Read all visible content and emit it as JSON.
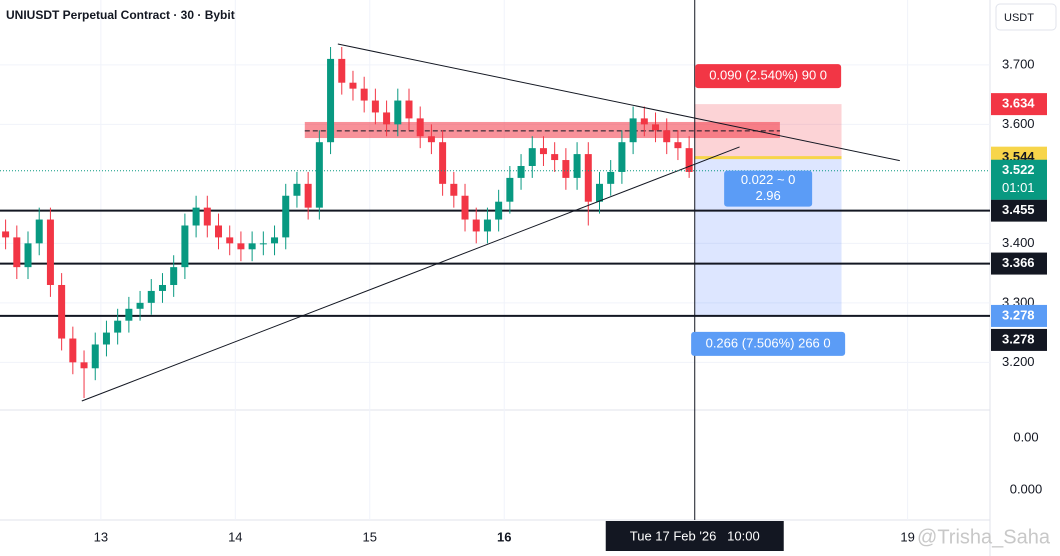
{
  "chart_data": {
    "type": "candlestick",
    "title": "UNIUSDT Perpetual Contract · 30 · Bybit",
    "currency": "USDT",
    "up_color": "#089981",
    "down_color": "#f23645",
    "x": [
      -17,
      -15,
      -13,
      -11,
      -9,
      -7,
      -5,
      -3,
      -1,
      1,
      3,
      5,
      7,
      9,
      11,
      13,
      15,
      17,
      19,
      21,
      23,
      25,
      27,
      29,
      31,
      33,
      35,
      37,
      39,
      41,
      43,
      45,
      47,
      49,
      51,
      53,
      55,
      57,
      59,
      61,
      63,
      65,
      67,
      69,
      71,
      73,
      75,
      77,
      79,
      81,
      83,
      85,
      87,
      89,
      91,
      93,
      95,
      97,
      99,
      101,
      103,
      105
    ],
    "open": [
      3.42,
      3.41,
      3.36,
      3.4,
      3.44,
      3.33,
      3.24,
      3.2,
      3.19,
      3.23,
      3.25,
      3.27,
      3.29,
      3.3,
      3.32,
      3.33,
      3.36,
      3.43,
      3.46,
      3.43,
      3.41,
      3.4,
      3.39,
      3.4,
      3.4,
      3.41,
      3.48,
      3.5,
      3.46,
      3.57,
      3.71,
      3.67,
      3.66,
      3.64,
      3.62,
      3.6,
      3.64,
      3.61,
      3.58,
      3.57,
      3.5,
      3.48,
      3.44,
      3.42,
      3.44,
      3.47,
      3.51,
      3.53,
      3.56,
      3.55,
      3.54,
      3.51,
      3.55,
      3.47,
      3.5,
      3.52,
      3.57,
      3.61,
      3.6,
      3.59,
      3.57,
      3.56
    ],
    "high": [
      3.44,
      3.43,
      3.42,
      3.46,
      3.46,
      3.35,
      3.26,
      3.22,
      3.25,
      3.27,
      3.29,
      3.31,
      3.32,
      3.34,
      3.35,
      3.38,
      3.45,
      3.48,
      3.48,
      3.45,
      3.43,
      3.42,
      3.42,
      3.42,
      3.43,
      3.5,
      3.52,
      3.52,
      3.59,
      3.73,
      3.73,
      3.69,
      3.68,
      3.66,
      3.64,
      3.66,
      3.66,
      3.63,
      3.6,
      3.59,
      3.52,
      3.5,
      3.46,
      3.46,
      3.49,
      3.53,
      3.55,
      3.58,
      3.58,
      3.57,
      3.56,
      3.57,
      3.57,
      3.52,
      3.54,
      3.59,
      3.63,
      3.63,
      3.62,
      3.61,
      3.59,
      3.58
    ],
    "low": [
      3.39,
      3.34,
      3.34,
      3.38,
      3.31,
      3.22,
      3.18,
      3.14,
      3.17,
      3.21,
      3.23,
      3.25,
      3.27,
      3.28,
      3.3,
      3.31,
      3.34,
      3.41,
      3.41,
      3.39,
      3.38,
      3.37,
      3.37,
      3.38,
      3.38,
      3.39,
      3.46,
      3.44,
      3.44,
      3.55,
      3.65,
      3.64,
      3.62,
      3.6,
      3.58,
      3.58,
      3.59,
      3.56,
      3.55,
      3.48,
      3.46,
      3.42,
      3.4,
      3.4,
      3.42,
      3.45,
      3.49,
      3.51,
      3.53,
      3.52,
      3.49,
      3.49,
      3.43,
      3.45,
      3.48,
      3.5,
      3.55,
      3.58,
      3.57,
      3.55,
      3.54,
      3.51
    ],
    "close": [
      3.41,
      3.36,
      3.4,
      3.44,
      3.33,
      3.24,
      3.2,
      3.19,
      3.23,
      3.25,
      3.27,
      3.29,
      3.3,
      3.32,
      3.33,
      3.36,
      3.43,
      3.46,
      3.43,
      3.41,
      3.4,
      3.39,
      3.4,
      3.4,
      3.41,
      3.48,
      3.5,
      3.46,
      3.57,
      3.71,
      3.67,
      3.66,
      3.64,
      3.62,
      3.6,
      3.64,
      3.61,
      3.58,
      3.57,
      3.5,
      3.48,
      3.44,
      3.42,
      3.44,
      3.47,
      3.51,
      3.53,
      3.56,
      3.55,
      3.54,
      3.51,
      3.55,
      3.47,
      3.5,
      3.52,
      3.57,
      3.61,
      3.6,
      3.59,
      3.57,
      3.56,
      3.52
    ],
    "xlim": [
      -18,
      158.7
    ],
    "xticks": [
      {
        "value": 0,
        "label": "13"
      },
      {
        "value": 24,
        "label": "14"
      },
      {
        "value": 48,
        "label": "15"
      },
      {
        "value": 72,
        "label": "16"
      },
      {
        "value": 144,
        "label": "19"
      }
    ],
    "ylim": [
      2.935,
      3.809
    ],
    "yticks": [
      {
        "value": 3.7,
        "label": "3.700"
      },
      {
        "value": 3.6,
        "label": "3.600"
      },
      {
        "value": 3.4,
        "label": "3.400"
      },
      {
        "value": 3.3,
        "label": "3.300"
      },
      {
        "value": 3.2,
        "label": "3.200"
      }
    ],
    "grid": true,
    "levels": [
      {
        "value": 3.455,
        "label": "3.455"
      },
      {
        "value": 3.366,
        "label": "3.366"
      },
      {
        "value": 3.278,
        "label": "3.278"
      }
    ],
    "price_tags": [
      {
        "value": 3.634,
        "label": "3.634",
        "color": "#f23645"
      },
      {
        "value": 3.544,
        "label": "3.544",
        "color": "#f7d54a"
      },
      {
        "value": 3.278,
        "label": "3.278",
        "color": "#5b9cf6"
      }
    ],
    "last_price": {
      "value": 3.522,
      "label": "3.522",
      "countdown": "01:01",
      "color": "#089981"
    },
    "zone": {
      "low": 3.577,
      "high": 3.604,
      "mid": 3.589,
      "x_start": 36.4,
      "x_end": 121.2
    },
    "position": {
      "entry": 3.544,
      "stop": 3.634,
      "target": 3.278,
      "x_start": 106,
      "x_end": 132.2,
      "stop_label": "0.090 (2.540%) 90 0",
      "mid_label": [
        "0.022 ~ 0",
        "2.96"
      ],
      "target_label": "0.266 (7.506%) 266 0"
    },
    "trendlines": [
      {
        "x": [
          42.3,
          142.6
        ],
        "y": [
          3.735,
          3.539
        ]
      },
      {
        "x": [
          -3.4,
          114
        ],
        "y": [
          3.135,
          3.562
        ]
      }
    ],
    "crosshair": {
      "x": 106,
      "label": "Tue 17 Feb '26   10:00"
    },
    "lower_pane_labels": [
      "0.00",
      "0.000"
    ],
    "watermark": "@Trisha_Saha"
  }
}
